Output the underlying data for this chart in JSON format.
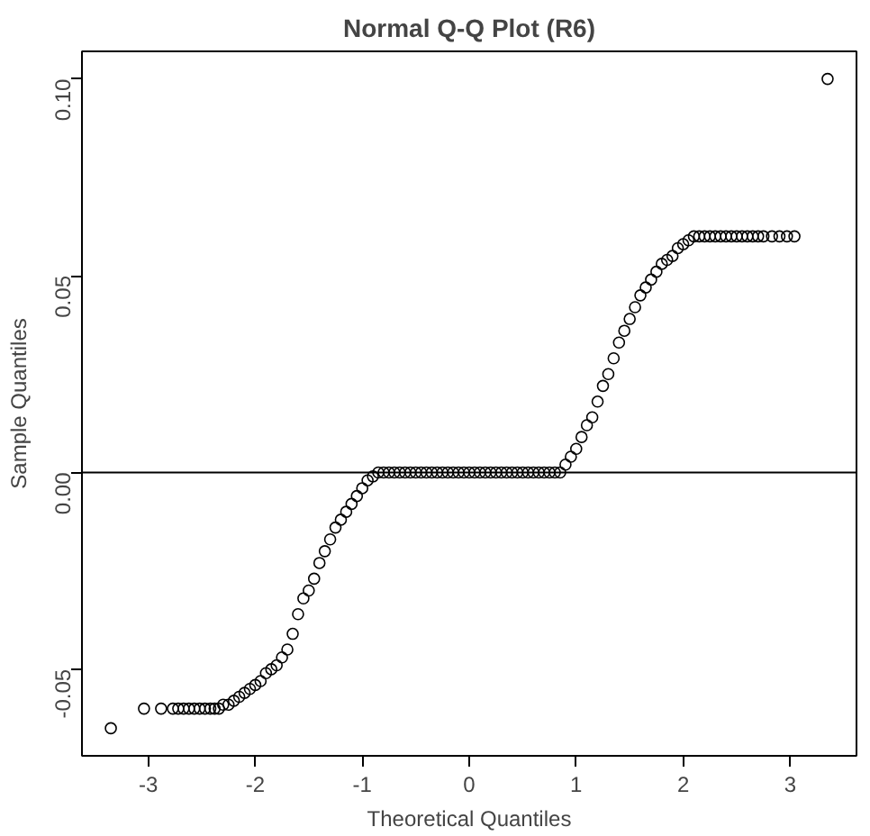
{
  "chart_data": {
    "type": "scatter",
    "title": "Normal Q-Q Plot (R6)",
    "xlabel": "Theoretical Quantiles",
    "ylabel": "Sample Quantiles",
    "xlim": [
      -3.62,
      3.62
    ],
    "ylim": [
      -0.072,
      0.107
    ],
    "xticks": [
      -3,
      -2,
      -1,
      0,
      1,
      2,
      3
    ],
    "yticks": [
      {
        "value": -0.05,
        "label": "-0.05"
      },
      {
        "value": 0,
        "label": "0.00"
      },
      {
        "value": 0.05,
        "label": "0.05"
      },
      {
        "value": 0.1,
        "label": "0.10"
      }
    ],
    "grid": false,
    "marker": "circle",
    "ref_lines": [
      {
        "axis": "y",
        "value": 0,
        "color": "#000000"
      }
    ],
    "series": [
      {
        "color": "#000000",
        "x": [
          -3.35,
          -3.04,
          -2.88,
          -2.77,
          -2.72,
          -2.67,
          -2.62,
          -2.57,
          -2.52,
          -2.47,
          -2.42,
          -2.38,
          -2.34,
          -2.3,
          -2.25,
          -2.2,
          -2.15,
          -2.1,
          -2.05,
          -2.0,
          -1.95,
          -1.9,
          -1.85,
          -1.8,
          -1.75,
          -1.7,
          -1.65,
          -1.6,
          -1.55,
          -1.5,
          -1.45,
          -1.4,
          -1.35,
          -1.3,
          -1.25,
          -1.2,
          -1.15,
          -1.1,
          -1.05,
          -1.0,
          -0.95,
          -0.9,
          -0.85,
          -0.8,
          -0.75,
          -0.7,
          -0.65,
          -0.6,
          -0.55,
          -0.5,
          -0.45,
          -0.4,
          -0.35,
          -0.3,
          -0.25,
          -0.2,
          -0.15,
          -0.1,
          -0.05,
          0,
          0.05,
          0.1,
          0.15,
          0.2,
          0.25,
          0.3,
          0.35,
          0.4,
          0.45,
          0.5,
          0.55,
          0.6,
          0.65,
          0.7,
          0.75,
          0.8,
          0.85,
          0.9,
          0.95,
          1.0,
          1.05,
          1.1,
          1.15,
          1.2,
          1.25,
          1.3,
          1.35,
          1.4,
          1.45,
          1.5,
          1.55,
          1.6,
          1.65,
          1.7,
          1.75,
          1.8,
          1.85,
          1.9,
          1.95,
          2.0,
          2.05,
          2.1,
          2.15,
          2.2,
          2.25,
          2.3,
          2.35,
          2.4,
          2.45,
          2.5,
          2.55,
          2.6,
          2.65,
          2.7,
          2.75,
          2.83,
          2.9,
          2.97,
          3.04,
          3.35
        ],
        "values": [
          -0.065,
          -0.06,
          -0.06,
          -0.06,
          -0.06,
          -0.06,
          -0.06,
          -0.06,
          -0.06,
          -0.06,
          -0.06,
          -0.06,
          -0.06,
          -0.059,
          -0.059,
          -0.058,
          -0.057,
          -0.056,
          -0.055,
          -0.054,
          -0.053,
          -0.051,
          -0.05,
          -0.049,
          -0.047,
          -0.045,
          -0.041,
          -0.036,
          -0.032,
          -0.03,
          -0.027,
          -0.023,
          -0.02,
          -0.017,
          -0.014,
          -0.012,
          -0.01,
          -0.008,
          -0.006,
          -0.004,
          -0.002,
          -0.001,
          0,
          0,
          0,
          0,
          0,
          0,
          0,
          0,
          0,
          0,
          0,
          0,
          0,
          0,
          0,
          0,
          0,
          0,
          0,
          0,
          0,
          0,
          0,
          0,
          0,
          0,
          0,
          0,
          0,
          0,
          0,
          0,
          0,
          0,
          0,
          0.002,
          0.004,
          0.006,
          0.009,
          0.012,
          0.014,
          0.018,
          0.022,
          0.025,
          0.029,
          0.033,
          0.036,
          0.039,
          0.042,
          0.045,
          0.047,
          0.049,
          0.051,
          0.053,
          0.054,
          0.055,
          0.057,
          0.058,
          0.059,
          0.06,
          0.06,
          0.06,
          0.06,
          0.06,
          0.06,
          0.06,
          0.06,
          0.06,
          0.06,
          0.06,
          0.06,
          0.06,
          0.06,
          0.06,
          0.06,
          0.06,
          0.06,
          0.1
        ]
      }
    ]
  }
}
